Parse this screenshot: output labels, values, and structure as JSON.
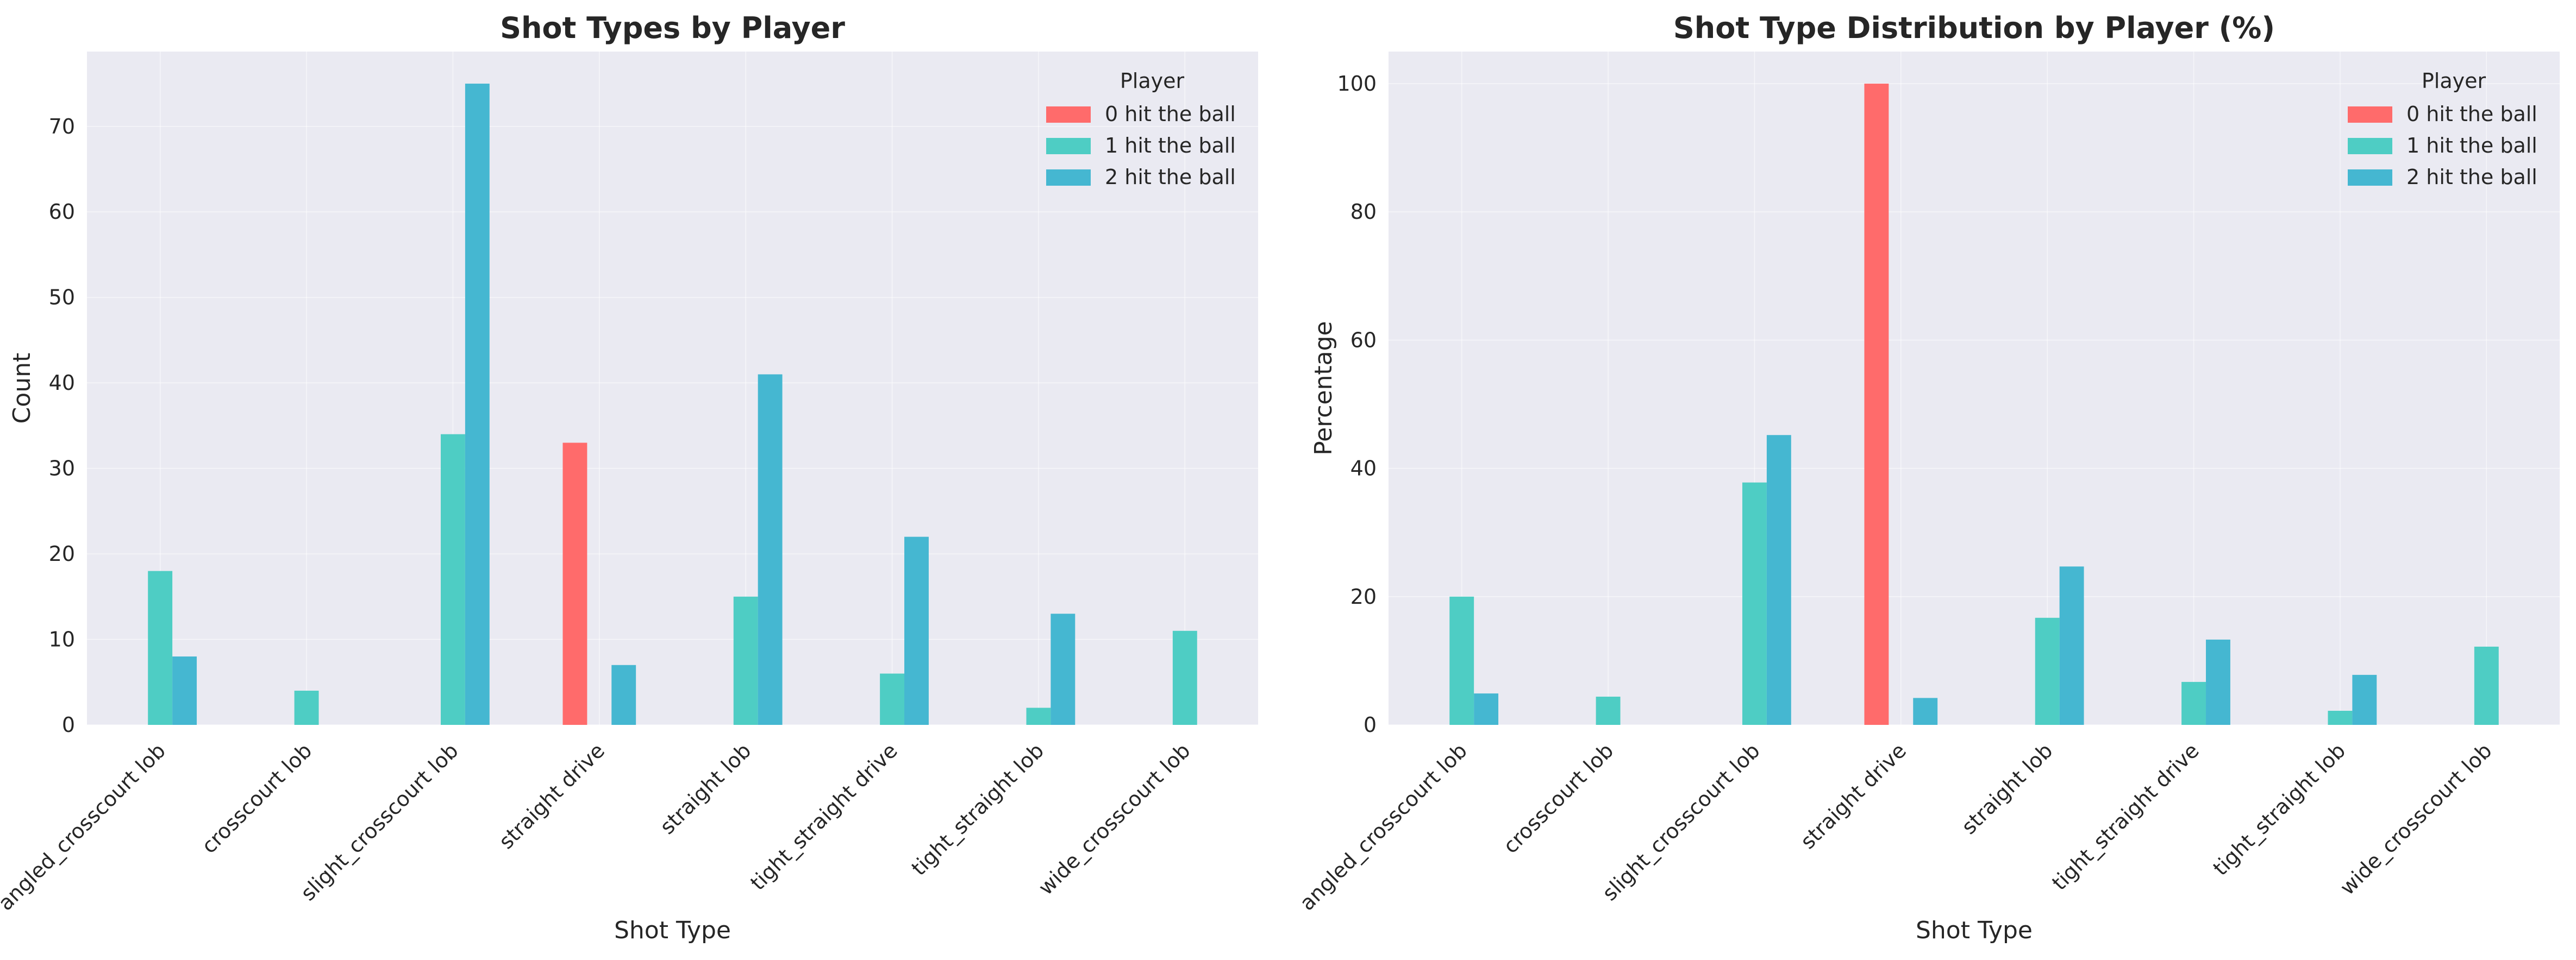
{
  "chart_data": [
    {
      "type": "bar",
      "title": "Shot Types by Player",
      "xlabel": "Shot Type",
      "ylabel": "Count",
      "ylim": [
        0,
        78.75
      ],
      "yticks": [
        0,
        10,
        20,
        30,
        40,
        50,
        60,
        70
      ],
      "grid": true,
      "legend_title": "Player",
      "legend_position": "top-right",
      "categories": [
        "angled_crosscourt lob",
        "crosscourt lob",
        "slight_crosscourt lob",
        "straight drive",
        "straight lob",
        "tight_straight drive",
        "tight_straight lob",
        "wide_crosscourt lob"
      ],
      "series": [
        {
          "name": "0 hit the ball",
          "color": "#ff6b6b",
          "values": [
            0,
            0,
            0,
            33,
            0,
            0,
            0,
            0
          ]
        },
        {
          "name": "1 hit the ball",
          "color": "#4ecdc4",
          "values": [
            18,
            4,
            34,
            0,
            15,
            6,
            2,
            11
          ]
        },
        {
          "name": "2 hit the ball",
          "color": "#45b7d1",
          "values": [
            8,
            0,
            75,
            7,
            41,
            22,
            13,
            0
          ]
        }
      ]
    },
    {
      "type": "bar",
      "title": "Shot Type Distribution by Player (%)",
      "xlabel": "Shot Type",
      "ylabel": "Percentage",
      "ylim": [
        0,
        105
      ],
      "yticks": [
        0,
        20,
        40,
        60,
        80,
        100
      ],
      "grid": true,
      "legend_title": "Player",
      "legend_position": "top-right",
      "categories": [
        "angled_crosscourt lob",
        "crosscourt lob",
        "slight_crosscourt lob",
        "straight drive",
        "straight lob",
        "tight_straight drive",
        "tight_straight lob",
        "wide_crosscourt lob"
      ],
      "series": [
        {
          "name": "0 hit the ball",
          "color": "#ff6b6b",
          "values": [
            0,
            0,
            0,
            100,
            0,
            0,
            0,
            0
          ]
        },
        {
          "name": "1 hit the ball",
          "color": "#4ecdc4",
          "values": [
            20.0,
            4.4,
            37.8,
            0,
            16.7,
            6.7,
            2.2,
            12.2
          ]
        },
        {
          "name": "2 hit the ball",
          "color": "#45b7d1",
          "values": [
            4.9,
            0,
            45.2,
            4.2,
            24.7,
            13.3,
            7.8,
            0
          ]
        }
      ]
    }
  ]
}
